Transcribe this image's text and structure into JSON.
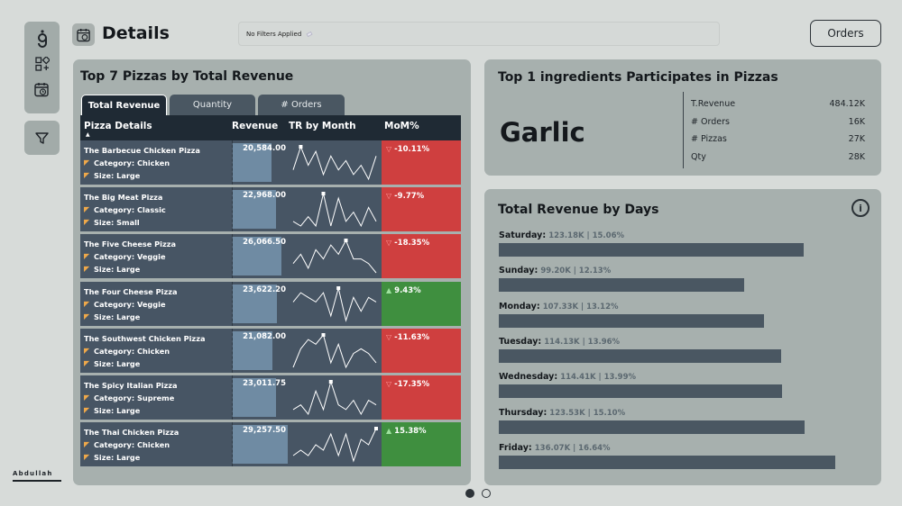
{
  "header": {
    "title": "Details",
    "filter_text": "No Filters Applied",
    "orders_button": "Orders"
  },
  "brand": "Abdullah",
  "sidebar": {
    "icons": [
      "logo-icon",
      "widgets-icon",
      "calendar-icon",
      "filter-icon"
    ]
  },
  "left_panel": {
    "title": "Top 7 Pizzas by Total Revenue",
    "tabs": [
      "Total Revenue",
      "Quantity",
      "# Orders"
    ],
    "active_tab": "Total Revenue",
    "columns": [
      "Pizza Details",
      "Revenue",
      "TR by Month",
      "MoM%"
    ],
    "rows": [
      {
        "name": "The Barbecue Chicken Pizza",
        "category": "Category: Chicken",
        "size": "Size: Large",
        "revenue": "20,584.00",
        "revenue_value": 20584.0,
        "mom": "-10.11%",
        "trend": "neg",
        "spark": [
          3,
          8,
          4,
          7,
          2,
          6,
          3,
          5,
          2,
          4,
          1,
          6
        ]
      },
      {
        "name": "The Big Meat Pizza",
        "category": "Category: Classic",
        "size": "Size: Small",
        "revenue": "22,968.00",
        "revenue_value": 22968.0,
        "mom": "-9.77%",
        "trend": "neg",
        "spark": [
          2,
          1,
          3,
          1,
          8,
          1,
          7,
          2,
          4,
          1,
          5,
          2
        ]
      },
      {
        "name": "The Five Cheese Pizza",
        "category": "Category: Veggie",
        "size": "Size: Large",
        "revenue": "26,066.50",
        "revenue_value": 26066.5,
        "mom": "-18.35%",
        "trend": "neg",
        "spark": [
          3,
          5,
          2,
          6,
          4,
          7,
          5,
          8,
          4,
          4,
          3,
          1
        ]
      },
      {
        "name": "The Four Cheese Pizza",
        "category": "Category: Veggie",
        "size": "Size: Large",
        "revenue": "23,622.20",
        "revenue_value": 23622.2,
        "mom": "9.43%",
        "trend": "pos",
        "spark": [
          5,
          7,
          6,
          5,
          7,
          2,
          8,
          1,
          6,
          3,
          6,
          5
        ]
      },
      {
        "name": "The Southwest Chicken Pizza",
        "category": "Category: Chicken",
        "size": "Size: Large",
        "revenue": "21,082.00",
        "revenue_value": 21082.0,
        "mom": "-11.63%",
        "trend": "neg",
        "spark": [
          1,
          5,
          7,
          6,
          8,
          2,
          6,
          1,
          4,
          5,
          4,
          2
        ]
      },
      {
        "name": "The Spicy Italian Pizza",
        "category": "Category: Supreme",
        "size": "Size: Large",
        "revenue": "23,011.75",
        "revenue_value": 23011.75,
        "mom": "-17.35%",
        "trend": "neg",
        "spark": [
          2,
          3,
          1,
          6,
          2,
          8,
          3,
          2,
          4,
          1,
          4,
          3
        ]
      },
      {
        "name": "The Thai Chicken Pizza",
        "category": "Category: Chicken",
        "size": "Size: Large",
        "revenue": "29,257.50",
        "revenue_value": 29257.5,
        "mom": "15.38%",
        "trend": "pos",
        "spark": [
          3,
          4,
          3,
          5,
          4,
          7,
          3,
          7,
          2,
          6,
          5,
          8
        ]
      }
    ]
  },
  "top_ingredient": {
    "title": "Top 1 ingredients Participates in Pizzas",
    "name": "Garlic",
    "stats": [
      {
        "label": "T.Revenue",
        "value": "484.12K"
      },
      {
        "label": "# Orders",
        "value": "16K"
      },
      {
        "label": "# Pizzas",
        "value": "27K"
      },
      {
        "label": "Qty",
        "value": "28K"
      }
    ]
  },
  "days_panel": {
    "title": "Total Revenue by Days",
    "info_icon": "info-icon",
    "days": [
      {
        "day": "Saturday:",
        "stat": "123.18K | 15.06%",
        "value": 123.18
      },
      {
        "day": "Sunday:",
        "stat": "99.20K | 12.13%",
        "value": 99.2
      },
      {
        "day": "Monday:",
        "stat": "107.33K | 13.12%",
        "value": 107.33
      },
      {
        "day": "Tuesday:",
        "stat": "114.13K | 13.96%",
        "value": 114.13
      },
      {
        "day": "Wednesday:",
        "stat": "114.41K | 13.99%",
        "value": 114.41
      },
      {
        "day": "Thursday:",
        "stat": "123.53K | 15.10%",
        "value": 123.53
      },
      {
        "day": "Friday:",
        "stat": "136.07K | 16.64%",
        "value": 136.07
      }
    ]
  },
  "pager": {
    "pages": 2,
    "active": 1
  }
}
